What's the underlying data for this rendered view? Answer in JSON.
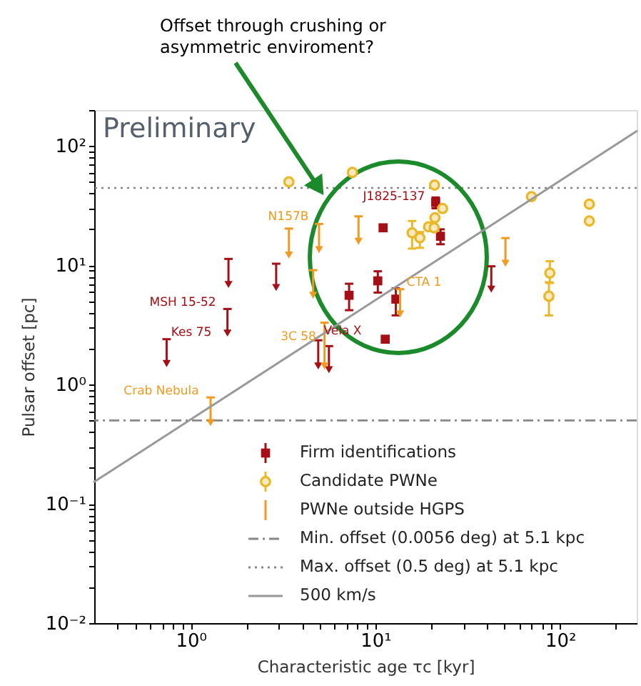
{
  "chart_data": {
    "type": "scatter",
    "xlabel": "Characteristic age τc [kyr]",
    "ylabel": "Pulsar offset [pc]",
    "log": "xy",
    "xlim": [
      0.3,
      260
    ],
    "ylim": [
      0.01,
      200
    ],
    "xticks": [
      {
        "value": 0.4,
        "label": null
      },
      {
        "value": 0.5,
        "label": null
      },
      {
        "value": 0.6,
        "label": null
      },
      {
        "value": 0.7,
        "label": null
      },
      {
        "value": 0.8,
        "label": null
      },
      {
        "value": 0.9,
        "label": null
      },
      {
        "value": 1,
        "label": "10⁰"
      },
      {
        "value": 2,
        "label": null
      },
      {
        "value": 3,
        "label": null
      },
      {
        "value": 4,
        "label": null
      },
      {
        "value": 5,
        "label": null
      },
      {
        "value": 6,
        "label": null
      },
      {
        "value": 7,
        "label": null
      },
      {
        "value": 8,
        "label": null
      },
      {
        "value": 9,
        "label": null
      },
      {
        "value": 10,
        "label": "10¹"
      },
      {
        "value": 20,
        "label": null
      },
      {
        "value": 30,
        "label": null
      },
      {
        "value": 40,
        "label": null
      },
      {
        "value": 50,
        "label": null
      },
      {
        "value": 60,
        "label": null
      },
      {
        "value": 70,
        "label": null
      },
      {
        "value": 80,
        "label": null
      },
      {
        "value": 90,
        "label": null
      },
      {
        "value": 100,
        "label": "10²"
      },
      {
        "value": 200,
        "label": null
      }
    ],
    "yticks": [
      {
        "value": 0.01,
        "label": "10⁻²"
      },
      {
        "value": 0.02,
        "label": null
      },
      {
        "value": 0.03,
        "label": null
      },
      {
        "value": 0.04,
        "label": null
      },
      {
        "value": 0.05,
        "label": null
      },
      {
        "value": 0.06,
        "label": null
      },
      {
        "value": 0.07,
        "label": null
      },
      {
        "value": 0.08,
        "label": null
      },
      {
        "value": 0.09,
        "label": null
      },
      {
        "value": 0.1,
        "label": "10⁻¹"
      },
      {
        "value": 0.2,
        "label": null
      },
      {
        "value": 0.3,
        "label": null
      },
      {
        "value": 0.4,
        "label": null
      },
      {
        "value": 0.5,
        "label": null
      },
      {
        "value": 0.6,
        "label": null
      },
      {
        "value": 0.7,
        "label": null
      },
      {
        "value": 0.8,
        "label": null
      },
      {
        "value": 0.9,
        "label": null
      },
      {
        "value": 1,
        "label": "10⁰"
      },
      {
        "value": 2,
        "label": null
      },
      {
        "value": 3,
        "label": null
      },
      {
        "value": 4,
        "label": null
      },
      {
        "value": 5,
        "label": null
      },
      {
        "value": 6,
        "label": null
      },
      {
        "value": 7,
        "label": null
      },
      {
        "value": 8,
        "label": null
      },
      {
        "value": 9,
        "label": null
      },
      {
        "value": 10,
        "label": "10¹"
      },
      {
        "value": 20,
        "label": null
      },
      {
        "value": 30,
        "label": null
      },
      {
        "value": 40,
        "label": null
      },
      {
        "value": 50,
        "label": null
      },
      {
        "value": 60,
        "label": null
      },
      {
        "value": 70,
        "label": null
      },
      {
        "value": 80,
        "label": null
      },
      {
        "value": 90,
        "label": null
      },
      {
        "value": 100,
        "label": "10²"
      },
      {
        "value": 200,
        "label": null
      }
    ],
    "grid": false,
    "legend": "bottom right",
    "series": [
      {
        "name": "Firm identifications",
        "marker": "square",
        "color": "#a50f15",
        "x": [
          21.2,
          11.0,
          22.5,
          10.3,
          7.2,
          12.9,
          11.3
        ],
        "values": [
          33.6,
          20.6,
          17.5,
          7.4,
          5.6,
          5.2,
          2.4
        ],
        "errors": [
          [
            30,
            37
          ],
          null,
          [
            15,
            20
          ],
          [
            5.9,
            8.9
          ],
          [
            4.2,
            7.0
          ],
          [
            3.8,
            6.4
          ],
          null
        ]
      },
      {
        "marker": "triangle",
        "color": "#a50f15",
        "x": [
          1.6,
          2.9,
          1.58,
          0.74,
          4.9,
          5.6,
          42.4
        ],
        "values": [
          6.9,
          6.5,
          2.7,
          1.5,
          1.43,
          1.33,
          6.3
        ],
        "errors": [
          [
            6.9,
            11.3
          ],
          [
            6.5,
            10.3
          ],
          [
            2.7,
            4.3
          ],
          [
            1.5,
            2.4
          ],
          [
            1.43,
            2.35
          ],
          [
            1.33,
            2.1
          ],
          [
            6.3,
            9.8
          ]
        ]
      },
      {
        "name": "Candidate PWNe",
        "marker": "circle",
        "color": "#e8b828",
        "x": [
          3.4,
          7.5,
          20.9,
          70,
          144,
          144,
          23.1,
          21.0,
          19.4,
          20.8,
          15.8,
          17.4,
          88,
          87
        ],
        "values": [
          50,
          60,
          47,
          37.6,
          32.5,
          23.5,
          29.9,
          25,
          21,
          20.6,
          18.7,
          17,
          8.6,
          5.5
        ],
        "errors": [
          null,
          null,
          null,
          null,
          null,
          null,
          null,
          null,
          null,
          null,
          [
            13.8,
            23.5
          ],
          [
            14,
            19
          ],
          [
            7.1,
            10.8
          ],
          [
            3.8,
            7.2
          ]
        ]
      },
      {
        "name": "PWNe outside HGPS",
        "marker": "triangle",
        "color": "#f09a20",
        "x": [
          3.4,
          4.95,
          8.1,
          4.6,
          50.6,
          13.6,
          5.3,
          1.28
        ],
        "values": [
          12.2,
          13.5,
          15.9,
          5.6,
          10.4,
          3.9,
          1.43,
          0.48
        ],
        "errors": [
          [
            12.2,
            20.3
          ],
          [
            13.5,
            22.2
          ],
          [
            15.9,
            25.7
          ],
          [
            5.6,
            9.1
          ],
          [
            10.4,
            16.9
          ],
          [
            3.9,
            6.3
          ],
          [
            1.43,
            3.3
          ],
          [
            0.48,
            0.78
          ]
        ]
      },
      {
        "name": "500 km/s",
        "type": "line",
        "line_style": "solid",
        "color": "#999999",
        "x": [
          0.3,
          260
        ],
        "values": [
          0.153,
          133
        ]
      }
    ],
    "ref_lines": [
      {
        "axis": "y",
        "value": 0.5,
        "label": "Min. offset (0.0056 deg) at 5.1 kpc",
        "color": "#888888",
        "line_style": "dashed"
      },
      {
        "axis": "y",
        "value": 44.5,
        "label": "Max. offset (0.5 deg) at 5.1 kpc",
        "color": "#888888",
        "line_style": "dotted"
      }
    ],
    "annotations": [
      "Offset through crushing or asymmetric enviroment?",
      "Preliminary",
      "J1825-137",
      "N157B",
      "MSH 15-52",
      "Kes 75",
      "3C 58",
      "Vela X",
      "CTA 1",
      "Crab Nebula"
    ]
  }
}
